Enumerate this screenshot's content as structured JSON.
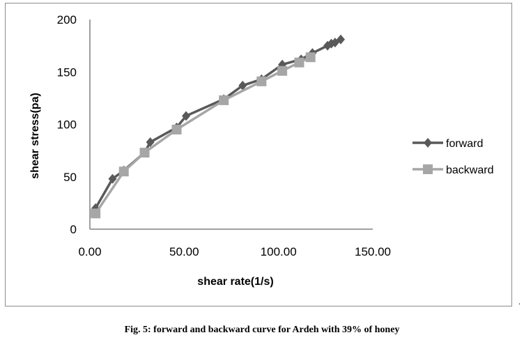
{
  "chart_data": {
    "type": "line",
    "xlabel": "shear rate(1/s)",
    "ylabel": "shear stress(pa)",
    "xlim": [
      0,
      150
    ],
    "ylim": [
      0,
      200
    ],
    "x_ticks": [
      "0.00",
      "50.00",
      "100.00",
      "150.00"
    ],
    "y_ticks": [
      "0",
      "50",
      "100",
      "150",
      "200"
    ],
    "grid": false,
    "legend_position": "right",
    "series": [
      {
        "name": "forward",
        "marker": "diamond",
        "color": "#595959",
        "points": [
          [
            3,
            20
          ],
          [
            12,
            48
          ],
          [
            18,
            56
          ],
          [
            29,
            73
          ],
          [
            32,
            83
          ],
          [
            46,
            97
          ],
          [
            51,
            108
          ],
          [
            71,
            124
          ],
          [
            81,
            137
          ],
          [
            91,
            143
          ],
          [
            102,
            157
          ],
          [
            112,
            162
          ],
          [
            118,
            168
          ],
          [
            126,
            175
          ],
          [
            128,
            177
          ],
          [
            130,
            178
          ],
          [
            133,
            181
          ]
        ]
      },
      {
        "name": "backward",
        "marker": "square",
        "color": "#a6a6a6",
        "points": [
          [
            3,
            15
          ],
          [
            18,
            55
          ],
          [
            29,
            73
          ],
          [
            46,
            95
          ],
          [
            71,
            123
          ],
          [
            91,
            141
          ],
          [
            102,
            151
          ],
          [
            111,
            159
          ],
          [
            117,
            164
          ]
        ]
      }
    ]
  },
  "caption": "Fig. 5: forward and backward curve for Ardeh with 39% of honey",
  "trailing_mark": "."
}
